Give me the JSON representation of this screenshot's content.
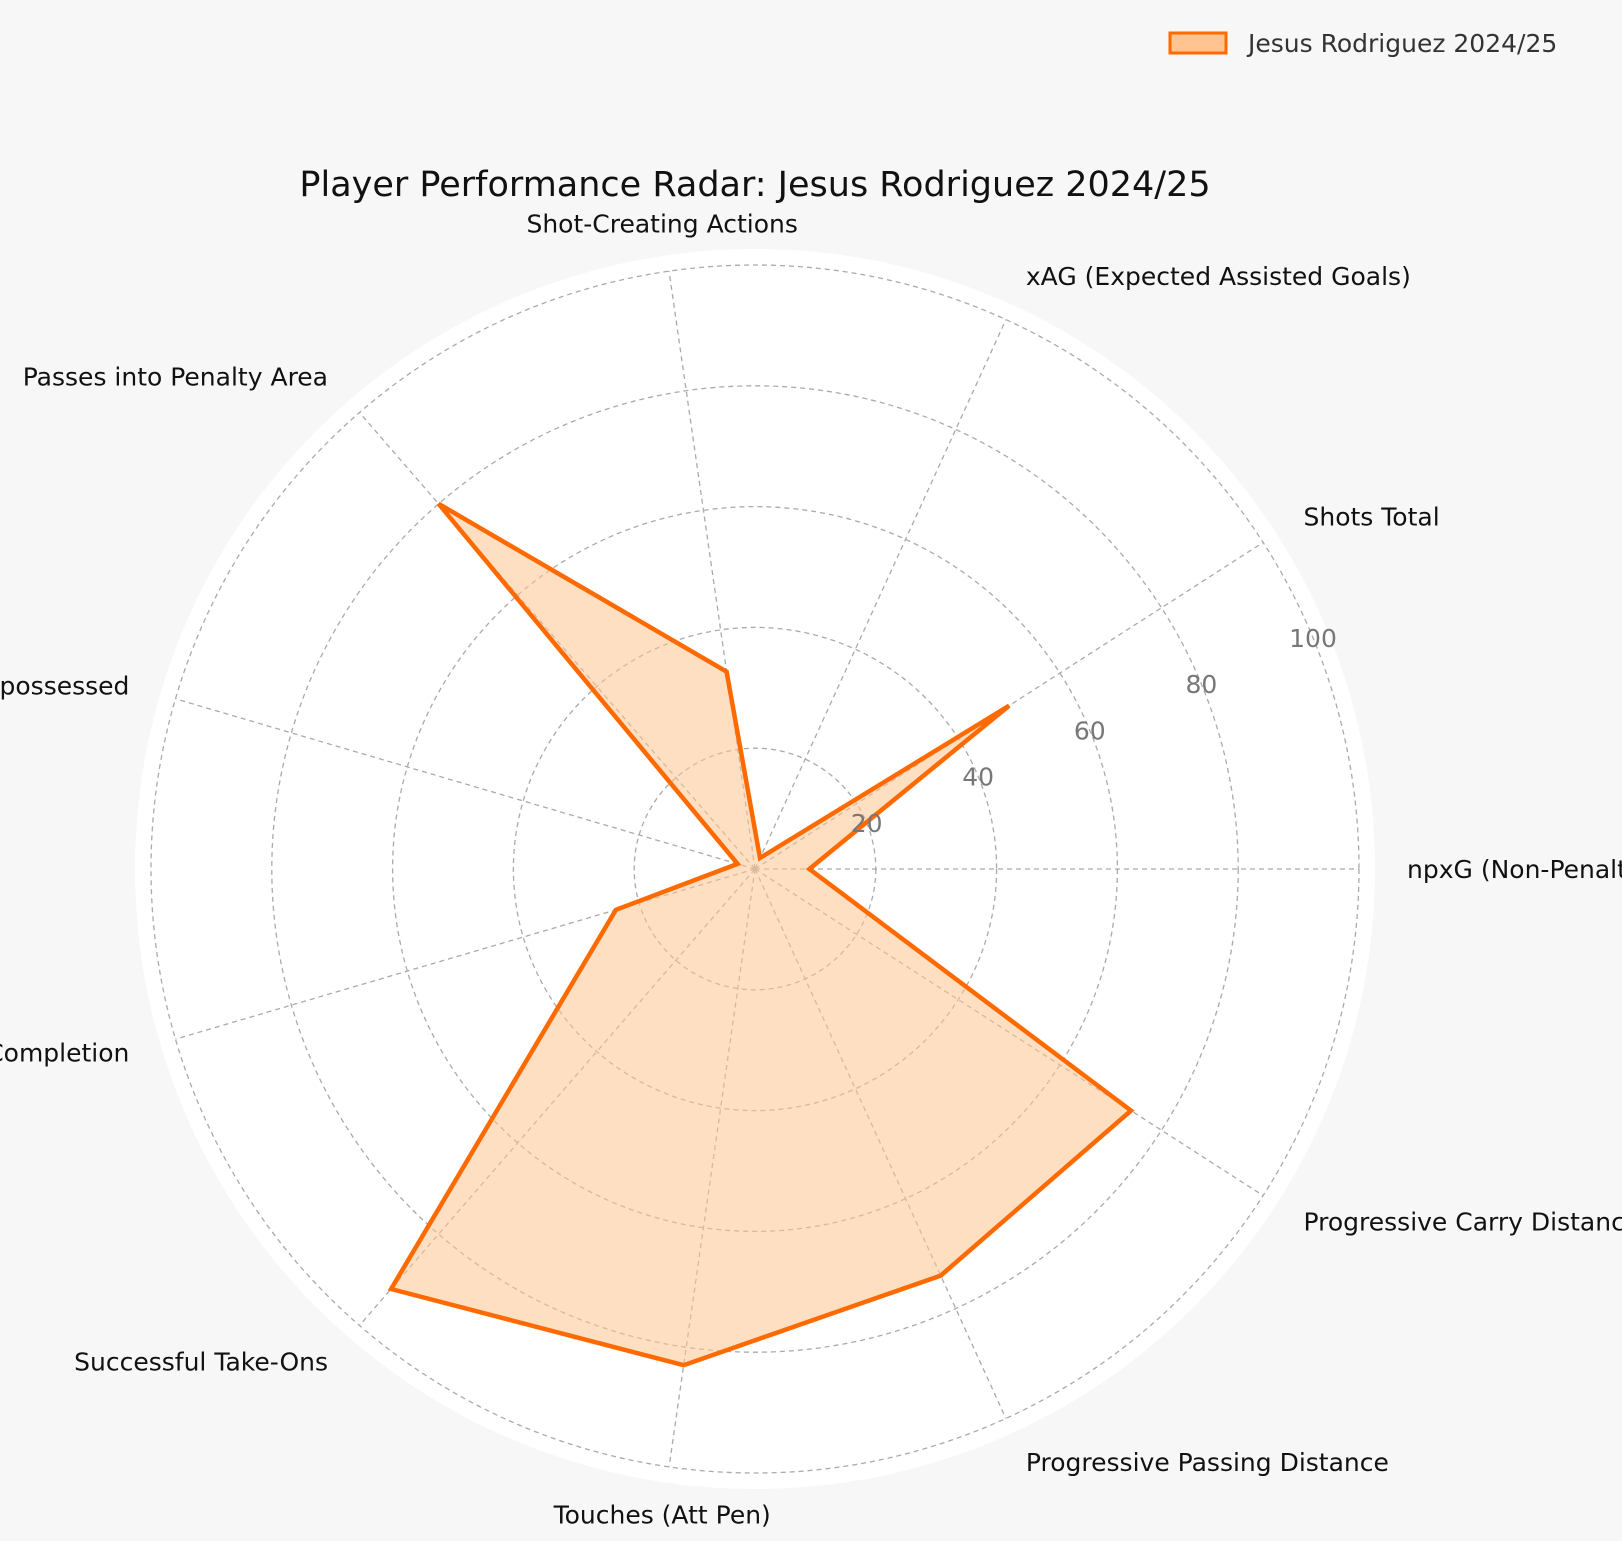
{
  "chart_data": {
    "type": "radar",
    "title": "Player Performance Radar: Jesus Rodriguez 2024/25",
    "categories": [
      "npxG (Non-Penalty xG)",
      "Shots Total",
      "xAG (Expected Assisted Goals)",
      "Shot-Creating Actions",
      "Passes into Penalty Area",
      "Dispossessed",
      "Pass Completion",
      "Successful Take-Ons",
      "Touches (Att Pen)",
      "Progressive Passing Distance",
      "Progressive Carry Distance"
    ],
    "series": [
      {
        "name": "Jesus Rodriguez 2024/25",
        "values": [
          9,
          50,
          2,
          33,
          80,
          3,
          24,
          92,
          83,
          74,
          74
        ],
        "color": "#ff6a00",
        "fill_color": "#ffc48f"
      }
    ],
    "rlim": [
      0,
      100
    ],
    "r_ticks": [
      20,
      40,
      60,
      80,
      100
    ],
    "r_tick_labels": [
      "20",
      "40",
      "60",
      "80",
      "100"
    ],
    "grid": true,
    "legend_position": "top-right"
  }
}
